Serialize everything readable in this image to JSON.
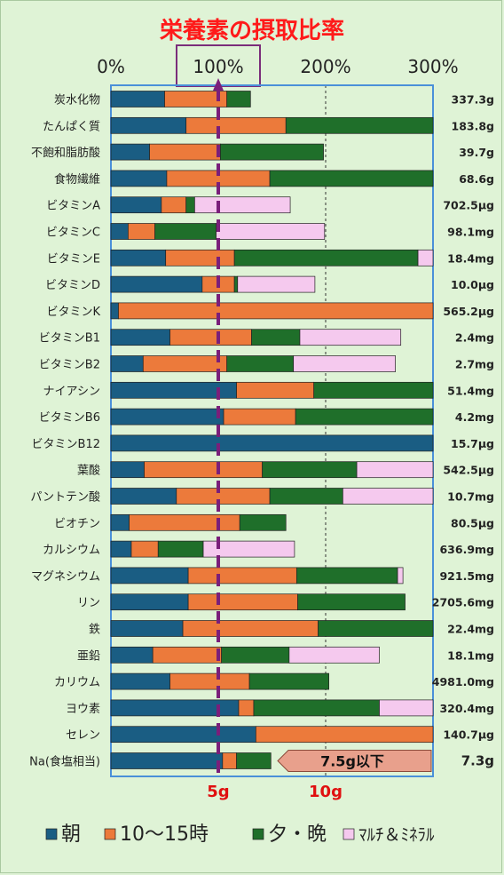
{
  "chart_data": {
    "type": "bar",
    "stacked": true,
    "orientation": "horizontal",
    "title": "栄養素の摂取比率",
    "x_ticks": [
      "0%",
      "100%",
      "200%",
      "300%"
    ],
    "xlim": [
      0,
      300
    ],
    "highlight_tick": "100%",
    "reference_line": 100,
    "legend_position": "bottom",
    "series": [
      {
        "name": "朝",
        "color": "#1a5d83"
      },
      {
        "name": "10～15時",
        "color": "#ec7a3b"
      },
      {
        "name": "夕・晩",
        "color": "#1f6f2a"
      },
      {
        "name": "ﾏﾙﾁ＆ﾐﾈﾗﾙ",
        "color": "#f5c9ee"
      }
    ],
    "categories": [
      {
        "label": "炭水化物",
        "amount": "337.3g",
        "values": [
          50,
          58,
          22,
          0
        ]
      },
      {
        "label": "たんぱく質",
        "amount": "183.8g",
        "values": [
          70,
          93,
          137,
          0
        ]
      },
      {
        "label": "不飽和脂肪酸",
        "amount": "39.7g",
        "values": [
          36,
          66,
          96,
          0
        ]
      },
      {
        "label": "食物繊維",
        "amount": "68.6g",
        "values": [
          52,
          96,
          152,
          0
        ]
      },
      {
        "label": "ビタミンA",
        "amount": "702.5μg",
        "values": [
          47,
          23,
          8,
          89
        ]
      },
      {
        "label": "ビタミンC",
        "amount": "98.1mg",
        "values": [
          16,
          25,
          57,
          101
        ]
      },
      {
        "label": "ビタミンE",
        "amount": "18.4mg",
        "values": [
          51,
          64,
          171,
          16
        ]
      },
      {
        "label": "ビタミンD",
        "amount": "10.0μg",
        "values": [
          85,
          30,
          3,
          72
        ]
      },
      {
        "label": "ビタミンK",
        "amount": "565.2μg",
        "values": [
          7,
          293,
          0,
          0
        ]
      },
      {
        "label": "ビタミンB1",
        "amount": "2.4mg",
        "values": [
          55,
          76,
          45,
          94
        ]
      },
      {
        "label": "ビタミンB2",
        "amount": "2.7mg",
        "values": [
          30,
          78,
          62,
          95
        ]
      },
      {
        "label": "ナイアシン",
        "amount": "51.4mg",
        "values": [
          117,
          72,
          111,
          0
        ]
      },
      {
        "label": "ビタミンB6",
        "amount": "4.2mg",
        "values": [
          105,
          67,
          128,
          0
        ]
      },
      {
        "label": "ビタミンB12",
        "amount": "15.7μg",
        "values": [
          300,
          0,
          0,
          0
        ]
      },
      {
        "label": "葉酸",
        "amount": "542.5μg",
        "values": [
          31,
          110,
          88,
          71
        ]
      },
      {
        "label": "パントテン酸",
        "amount": "10.7mg",
        "values": [
          61,
          87,
          68,
          84
        ]
      },
      {
        "label": "ビオチン",
        "amount": "80.5μg",
        "values": [
          17,
          103,
          43,
          0
        ]
      },
      {
        "label": "カルシウム",
        "amount": "636.9mg",
        "values": [
          19,
          25,
          42,
          85
        ]
      },
      {
        "label": "マグネシウム",
        "amount": "921.5mg",
        "values": [
          72,
          101,
          94,
          5
        ]
      },
      {
        "label": "リン",
        "amount": "2705.6mg",
        "values": [
          72,
          102,
          100,
          0
        ]
      },
      {
        "label": "鉄",
        "amount": "22.4mg",
        "values": [
          67,
          126,
          109,
          2
        ]
      },
      {
        "label": "亜鉛",
        "amount": "18.1mg",
        "values": [
          39,
          64,
          63,
          84
        ]
      },
      {
        "label": "カリウム",
        "amount": "4981.0mg",
        "values": [
          55,
          74,
          74,
          0
        ]
      },
      {
        "label": "ヨウ素",
        "amount": "320.4mg",
        "values": [
          119,
          14,
          117,
          56
        ]
      },
      {
        "label": "セレン",
        "amount": "140.7μg",
        "values": [
          135,
          165,
          0,
          0
        ]
      },
      {
        "label": "Na(食塩相当)",
        "amount": "7.3g",
        "values": [
          104,
          13,
          32,
          0
        ]
      }
    ],
    "sodium_ticks": [
      "5g",
      "10g"
    ],
    "sodium_tick_values": [
      5,
      10
    ],
    "sodium_limit_label": "7.5g以下"
  }
}
